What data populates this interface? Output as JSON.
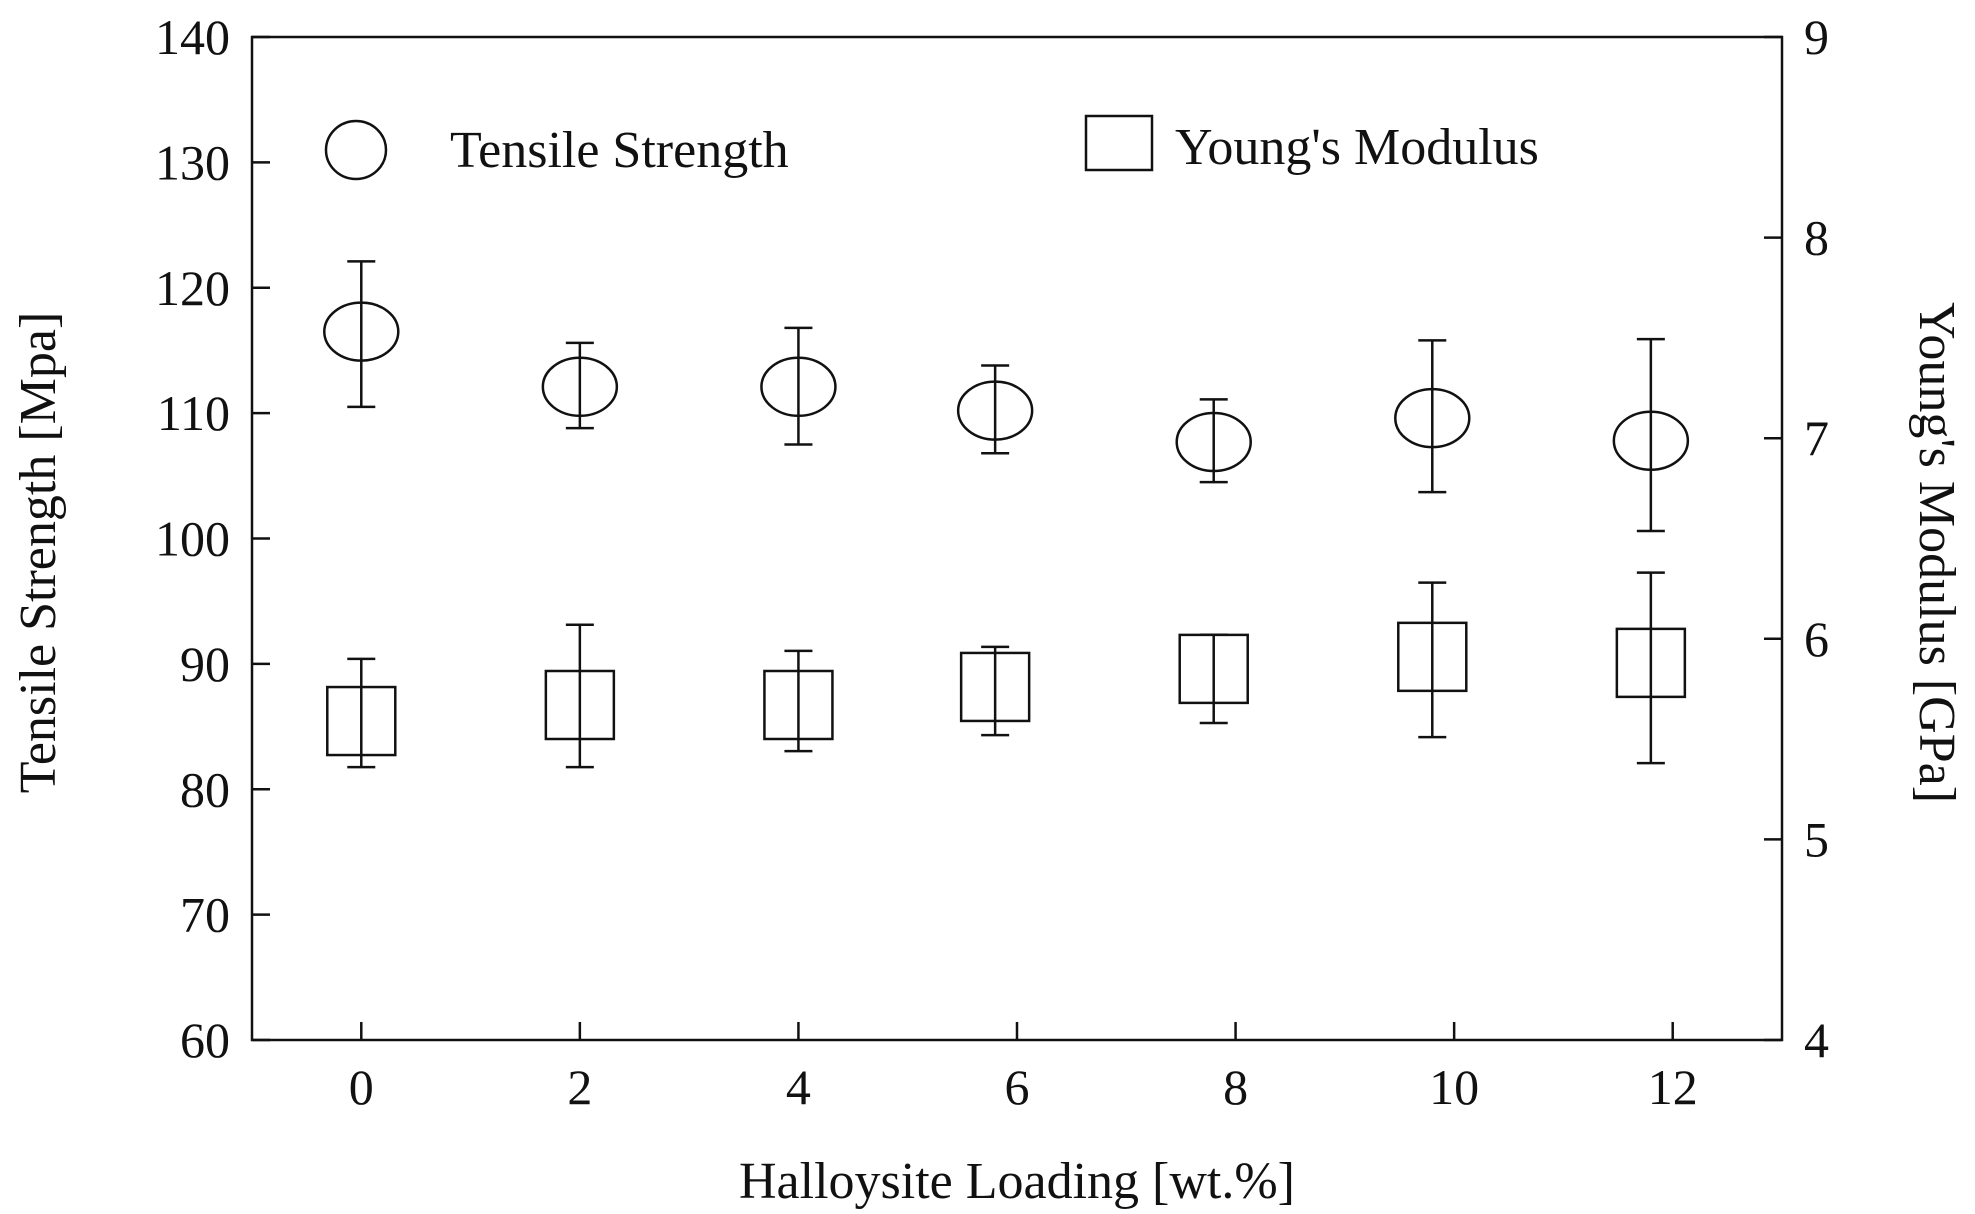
{
  "chart_data": {
    "type": "scatter",
    "title": "",
    "xlabel": "Halloysite Loading [wt.%]",
    "ylabel_left": "Tensile Strength [Mpa]",
    "ylabel_right": "Young's Modulus [GPa]",
    "xlim": [
      -1,
      13
    ],
    "ylim_left": [
      60,
      140
    ],
    "ylim_right": [
      4,
      9
    ],
    "x_ticks": [
      "0",
      "2",
      "4",
      "6",
      "8",
      "10",
      "12"
    ],
    "y_left_ticks": [
      "60",
      "70",
      "80",
      "90",
      "100",
      "110",
      "120",
      "130",
      "140"
    ],
    "y_right_ticks": [
      "4",
      "5",
      "6",
      "7",
      "8",
      "9"
    ],
    "legend_position": "top",
    "series": [
      {
        "name": "Tensile Strength",
        "marker": "circle",
        "axis": "left",
        "x": [
          0,
          2,
          4,
          5.8,
          7.8,
          9.8,
          11.8
        ],
        "values": [
          116.5,
          112.1,
          112.1,
          110.2,
          107.7,
          109.6,
          107.8
        ],
        "err_low": [
          110.5,
          108.8,
          107.5,
          106.8,
          104.5,
          103.7,
          100.6
        ],
        "err_high": [
          122.1,
          115.6,
          116.8,
          113.8,
          111.1,
          115.8,
          115.9
        ]
      },
      {
        "name": "Young's Modulus",
        "marker": "square",
        "axis": "right",
        "x": [
          0,
          2,
          4,
          5.8,
          7.8,
          9.8,
          11.8
        ],
        "values": [
          5.59,
          5.67,
          5.67,
          5.76,
          5.85,
          5.91,
          5.88
        ],
        "err_low": [
          5.36,
          5.36,
          5.44,
          5.52,
          5.58,
          5.51,
          5.38
        ],
        "err_high": [
          5.9,
          6.07,
          5.94,
          5.96,
          6.02,
          6.28,
          6.33
        ]
      }
    ]
  }
}
